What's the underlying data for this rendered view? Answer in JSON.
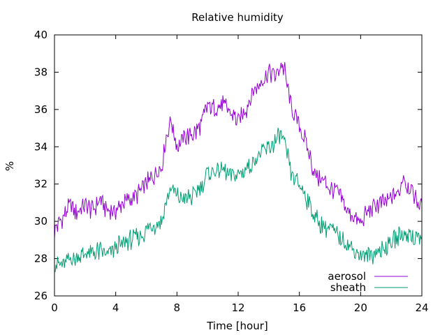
{
  "chart_data": {
    "type": "line",
    "title": "Relative humidity",
    "xlabel": "Time [hour]",
    "ylabel": "%",
    "xlim": [
      0,
      24
    ],
    "ylim": [
      26,
      40
    ],
    "x_ticks": [
      0,
      4,
      8,
      12,
      16,
      20,
      24
    ],
    "y_ticks": [
      26,
      28,
      30,
      32,
      34,
      36,
      38,
      40
    ],
    "grid": false,
    "legend": "bottom-right",
    "series": [
      {
        "name": "aerosol",
        "color": "#9400d3",
        "x": [
          0.0,
          0.5,
          1.0,
          1.5,
          2.0,
          2.5,
          3.0,
          3.5,
          4.0,
          4.5,
          5.0,
          5.5,
          6.0,
          6.5,
          7.0,
          7.3,
          7.6,
          8.0,
          8.5,
          9.0,
          9.5,
          10.0,
          10.5,
          11.0,
          11.5,
          12.0,
          12.5,
          13.0,
          13.5,
          14.0,
          14.5,
          14.8,
          15.0,
          15.5,
          16.0,
          16.5,
          17.0,
          17.5,
          18.0,
          18.5,
          19.0,
          19.5,
          20.0,
          20.5,
          21.0,
          21.5,
          22.0,
          22.5,
          22.8,
          23.0,
          23.5,
          24.0
        ],
        "y": [
          29.5,
          30.2,
          30.8,
          30.5,
          30.8,
          30.6,
          31.2,
          30.5,
          30.6,
          31.0,
          31.2,
          31.5,
          32.0,
          32.5,
          33.0,
          34.5,
          35.5,
          34.0,
          34.5,
          34.6,
          35.0,
          36.2,
          36.0,
          36.3,
          35.8,
          35.4,
          36.0,
          37.0,
          37.5,
          38.0,
          37.8,
          38.5,
          38.2,
          36.0,
          35.2,
          34.0,
          32.5,
          32.2,
          31.8,
          31.5,
          30.8,
          30.2,
          29.8,
          30.6,
          30.8,
          31.0,
          31.2,
          31.5,
          32.5,
          32.0,
          31.5,
          30.7
        ]
      },
      {
        "name": "sheath",
        "color": "#009e73",
        "x": [
          0.0,
          0.5,
          1.0,
          1.5,
          2.0,
          2.5,
          3.0,
          3.5,
          4.0,
          4.5,
          5.0,
          5.5,
          6.0,
          6.5,
          7.0,
          7.3,
          7.6,
          8.0,
          8.5,
          9.0,
          9.5,
          10.0,
          10.5,
          11.0,
          11.5,
          12.0,
          12.5,
          13.0,
          13.5,
          14.0,
          14.5,
          14.8,
          15.0,
          15.5,
          16.0,
          16.5,
          17.0,
          17.5,
          18.0,
          18.5,
          19.0,
          19.5,
          20.0,
          20.5,
          21.0,
          21.5,
          22.0,
          22.5,
          22.8,
          23.0,
          23.5,
          24.0
        ],
        "y": [
          27.8,
          27.6,
          28.0,
          28.1,
          28.2,
          28.3,
          28.4,
          28.2,
          28.6,
          28.8,
          29.0,
          29.2,
          29.5,
          29.8,
          30.0,
          31.0,
          31.8,
          31.3,
          31.2,
          31.3,
          31.8,
          32.6,
          32.7,
          32.7,
          32.5,
          32.5,
          32.8,
          33.2,
          33.6,
          34.0,
          34.3,
          34.6,
          34.2,
          32.5,
          32.0,
          31.2,
          30.2,
          29.8,
          29.6,
          29.2,
          28.9,
          28.5,
          28.2,
          28.1,
          28.4,
          28.5,
          29.0,
          29.2,
          29.3,
          29.4,
          29.2,
          29.0
        ]
      }
    ]
  }
}
